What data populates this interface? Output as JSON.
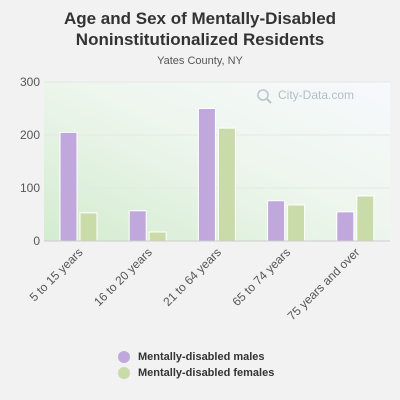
{
  "chart_data": {
    "type": "bar",
    "title": "Age and Sex of Mentally-Disabled Noninstitutionalized Residents",
    "subtitle": "Yates County, NY",
    "categories": [
      "5 to 15 years",
      "16 to 20 years",
      "21 to 64 years",
      "65 to 74 years",
      "75 years and over"
    ],
    "series": [
      {
        "name": "Mentally-disabled males",
        "values": [
          205,
          57,
          250,
          76,
          55
        ],
        "color": "#c0a8dc"
      },
      {
        "name": "Mentally-disabled females",
        "values": [
          53,
          17,
          213,
          68,
          85
        ],
        "color": "#c8dba8"
      }
    ],
    "yticks": [
      0,
      100,
      200,
      300
    ],
    "ylim": [
      0,
      300
    ],
    "grid": true,
    "legend_position": "bottom",
    "watermark": "City-Data.com"
  }
}
